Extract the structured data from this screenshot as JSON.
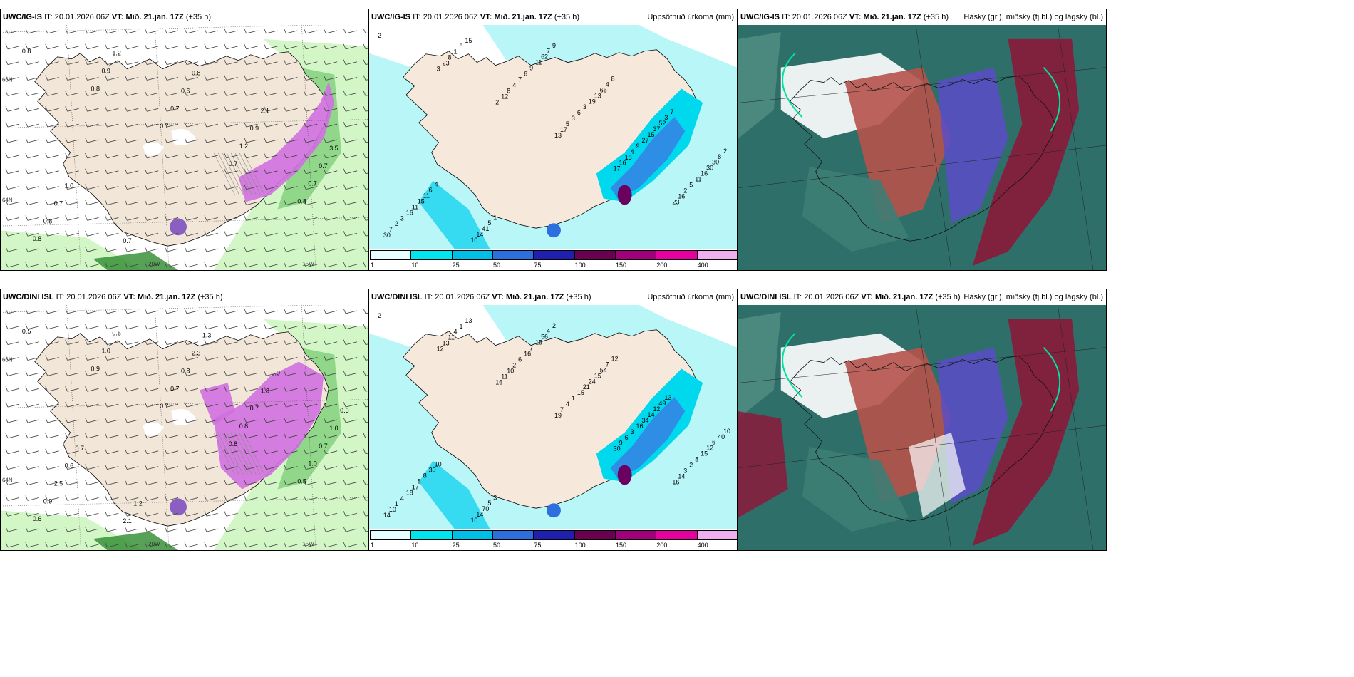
{
  "panels": {
    "p1": {
      "model": "UWC/IG-IS",
      "it_label": "IT:",
      "it": "20.01.2026 06Z",
      "vt_label": "VT:",
      "vt": "Mið. 21.jan. 17Z",
      "lead": "(+35 h)",
      "title": ""
    },
    "p2": {
      "model": "UWC/IG-IS",
      "it_label": "IT:",
      "it": "20.01.2026 06Z",
      "vt_label": "VT:",
      "vt": "Mið. 21.jan. 17Z",
      "lead": "(+35 h)",
      "title": "Uppsöfnuð úrkoma (mm)"
    },
    "p3": {
      "model": "UWC/IG-IS",
      "it_label": "IT:",
      "it": "20.01.2026 06Z",
      "vt_label": "VT:",
      "vt": "Mið. 21.jan. 17Z",
      "lead": "(+35 h)",
      "title": "Háský (gr.), miðský (fj.bl.) og lágský (bl.)"
    },
    "p4": {
      "model": "UWC/DINI ISL",
      "it_label": "IT:",
      "it": "20.01.2026 06Z",
      "vt_label": "VT:",
      "vt": "Mið. 21.jan. 17Z",
      "lead": "(+35 h)",
      "title": ""
    },
    "p5": {
      "model": "UWC/DINI ISL",
      "it_label": "IT:",
      "it": "20.01.2026 06Z",
      "vt_label": "VT:",
      "vt": "Mið. 21.jan. 17Z",
      "lead": "(+35 h)",
      "title": "Uppsöfnuð úrkoma (mm)"
    },
    "p6": {
      "model": "UWC/DINI ISL",
      "it_label": "IT:",
      "it": "20.01.2026 06Z",
      "vt_label": "VT:",
      "vt": "Mið. 21.jan. 17Z",
      "lead": "(+35 h)",
      "title": "Háský (gr.), miðský (fj.bl.) og lágský (bl.)"
    }
  },
  "axes": {
    "lat_66": "66N",
    "lat_64": "64N",
    "lon_20": "20W",
    "lon_15": "15W",
    "lat_63": "63N"
  },
  "colorbar": {
    "labels": [
      "1",
      "10",
      "25",
      "50",
      "75",
      "100",
      "150",
      "200",
      "400"
    ],
    "colors": [
      "#e8ffff",
      "#00e5ee",
      "#00bfe6",
      "#2e6fe0",
      "#2020b0",
      "#6a0050",
      "#a0007a",
      "#e600a0",
      "#f0b0f0"
    ]
  },
  "precip_labels_top": [
    "2",
    "3",
    "2",
    "13",
    "17",
    "23",
    "30",
    "23",
    "12",
    "17",
    "16",
    "16",
    "7",
    "8",
    "8",
    "5",
    "18",
    "2",
    "2",
    "1",
    "4",
    "3",
    "4",
    "5",
    "3",
    "8",
    "7",
    "6",
    "9",
    "11",
    "16",
    "15",
    "6",
    "3",
    "27",
    "16",
    "11",
    "10",
    "9",
    "19",
    "15",
    "30",
    "15",
    "14",
    "11",
    "13",
    "37",
    "30",
    "11",
    "41",
    "62",
    "65",
    "52",
    "8",
    "6",
    "5",
    "7",
    "4",
    "3",
    "2",
    "4",
    "1",
    "9",
    "8",
    "7"
  ],
  "precip_labels_bot": [
    "2",
    "12",
    "16",
    "19",
    "30",
    "16",
    "14",
    "13",
    "11",
    "7",
    "9",
    "14",
    "10",
    "11",
    "10",
    "4",
    "6",
    "3",
    "1",
    "4",
    "2",
    "1",
    "3",
    "2",
    "4",
    "1",
    "6",
    "15",
    "16",
    "8",
    "18",
    "13",
    "16",
    "21",
    "34",
    "15",
    "17",
    "10",
    "7",
    "24",
    "14",
    "12",
    "8",
    "14",
    "15",
    "15",
    "12",
    "6",
    "8",
    "70",
    "56",
    "54",
    "49",
    "40",
    "39",
    "5",
    "4",
    "7",
    "13",
    "10",
    "10",
    "3",
    "2",
    "12"
  ],
  "wind_labels_top": [
    "0.8",
    "0.8",
    "0.7",
    "0.7",
    "0.8",
    "0.8",
    "0.9",
    "0.7",
    "1.2",
    "0.7",
    "0.8",
    "1.2",
    "0.6",
    "0.9",
    "0.7",
    "0.7",
    "0.7",
    "0.8",
    "2.1",
    "3.5",
    "1.0"
  ],
  "wind_labels_bot": [
    "0.5",
    "0.9",
    "0.7",
    "0.8",
    "0.5",
    "0.6",
    "1.0",
    "0.7",
    "0.8",
    "1.0",
    "0.9",
    "0.5",
    "0.8",
    "0.7",
    "0.7",
    "2.5",
    "2.1",
    "2.3",
    "1.8",
    "1.0",
    "0.6",
    "1.2",
    "1.3",
    "0.9",
    "0.5",
    "0.7"
  ]
}
